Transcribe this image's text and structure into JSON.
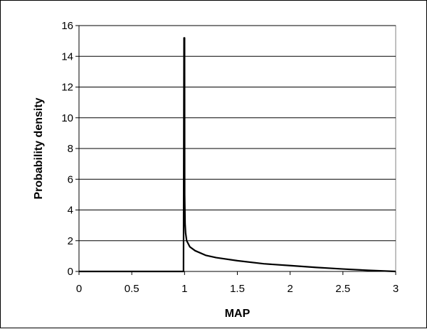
{
  "chart_data": {
    "type": "line",
    "title": "",
    "xlabel": "MAP",
    "ylabel": "Probability density",
    "xlim": [
      0,
      3
    ],
    "ylim": [
      0,
      16
    ],
    "xticks": [
      0,
      0.5,
      1,
      1.5,
      2,
      2.5,
      3
    ],
    "xtick_labels": [
      "0",
      "0.5",
      "1",
      "1.5",
      "2",
      "2.5",
      "3"
    ],
    "yticks": [
      0,
      2,
      4,
      6,
      8,
      10,
      12,
      14,
      16
    ],
    "ytick_labels": [
      "0",
      "2",
      "4",
      "6",
      "8",
      "10",
      "12",
      "14",
      "16"
    ],
    "grid": "horizontal",
    "legend": "none",
    "series": [
      {
        "color": "#000000",
        "x": [
          0,
          0.99,
          0.995,
          1.0,
          1.001,
          1.005,
          1.01,
          1.02,
          1.05,
          1.1,
          1.2,
          1.3,
          1.5,
          1.75,
          2.0,
          2.25,
          2.5,
          2.75,
          3.0
        ],
        "y": [
          0,
          0,
          15.2,
          15.2,
          5.0,
          3.1,
          2.5,
          2.0,
          1.6,
          1.35,
          1.05,
          0.9,
          0.7,
          0.5,
          0.38,
          0.26,
          0.16,
          0.07,
          0
        ]
      }
    ]
  }
}
